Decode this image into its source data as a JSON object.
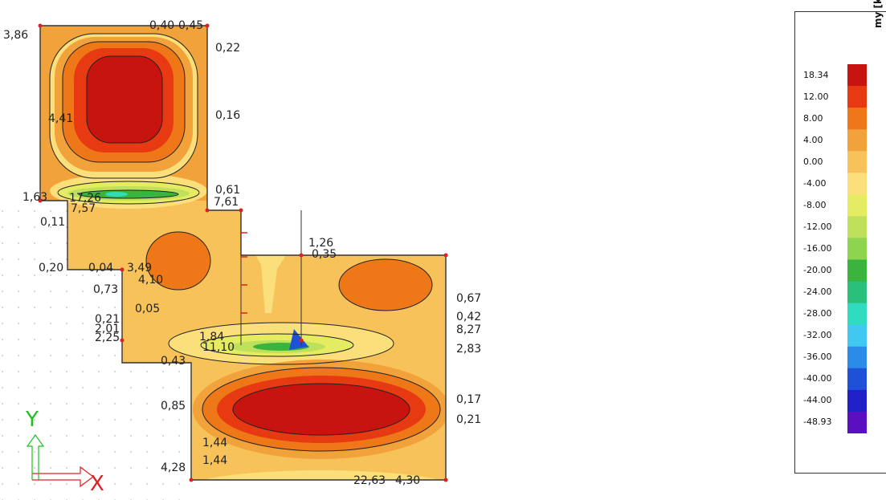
{
  "legend": {
    "unit": "my [kNm/m]",
    "levels": [
      "18.34",
      "12.00",
      "8.00",
      "4.00",
      "0.00",
      "-4.00",
      "-8.00",
      "-12.00",
      "-16.00",
      "-20.00",
      "-24.00",
      "-28.00",
      "-32.00",
      "-36.00",
      "-40.00",
      "-44.00",
      "-48.93"
    ],
    "colors": [
      "#c8140f",
      "#e83a12",
      "#ee7818",
      "#f2a23a",
      "#f7c25a",
      "#fadf7a",
      "#e6ec62",
      "#bfe05a",
      "#8ed44e",
      "#3ab43c",
      "#28c07a",
      "#30dcc0",
      "#40c8f0",
      "#2a8ce6",
      "#1e50d8",
      "#2020c8",
      "#5a10c0"
    ]
  },
  "contour_labels": [
    {
      "text": "3,86",
      "id": "a1"
    },
    {
      "text": "0,40",
      "id": "a2"
    },
    {
      "text": "0,45",
      "id": "a3"
    },
    {
      "text": "0,22",
      "id": "a4"
    },
    {
      "text": "4,41",
      "id": "a5"
    },
    {
      "text": "0,16",
      "id": "a6"
    },
    {
      "text": "1,63",
      "id": "a7"
    },
    {
      "text": "17,26",
      "id": "a8"
    },
    {
      "text": "7,57",
      "id": "a9"
    },
    {
      "text": "0,61",
      "id": "a10"
    },
    {
      "text": "7,61",
      "id": "a11"
    },
    {
      "text": "0,11",
      "id": "a12"
    },
    {
      "text": "1,26",
      "id": "a13"
    },
    {
      "text": "0,35",
      "id": "a14"
    },
    {
      "text": "0,20",
      "id": "a15"
    },
    {
      "text": "0,04",
      "id": "a16"
    },
    {
      "text": "3,49",
      "id": "a17"
    },
    {
      "text": "4,10",
      "id": "a18"
    },
    {
      "text": "0,73",
      "id": "a19"
    },
    {
      "text": "0,67",
      "id": "a20"
    },
    {
      "text": "0,05",
      "id": "a21"
    },
    {
      "text": "0,21",
      "id": "a22"
    },
    {
      "text": "0,42",
      "id": "a23"
    },
    {
      "text": "2,01",
      "id": "a24"
    },
    {
      "text": "8,27",
      "id": "a25"
    },
    {
      "text": "2,25",
      "id": "a26"
    },
    {
      "text": "1,84",
      "id": "a27"
    },
    {
      "text": "11,10",
      "id": "a28"
    },
    {
      "text": "2,83",
      "id": "a29"
    },
    {
      "text": "0,43",
      "id": "a30"
    },
    {
      "text": "0,17",
      "id": "a31"
    },
    {
      "text": "0,85",
      "id": "a32"
    },
    {
      "text": "0,21",
      "id": "a33"
    },
    {
      "text": "1,44",
      "id": "a34"
    },
    {
      "text": "1,44",
      "id": "a35"
    },
    {
      "text": "4,28",
      "id": "a36"
    },
    {
      "text": "22,63",
      "id": "a37"
    },
    {
      "text": "4,30",
      "id": "a38"
    }
  ],
  "axes": {
    "x_label": "X",
    "y_label": "Y",
    "x_color": "#e02020",
    "y_color": "#20c020"
  }
}
